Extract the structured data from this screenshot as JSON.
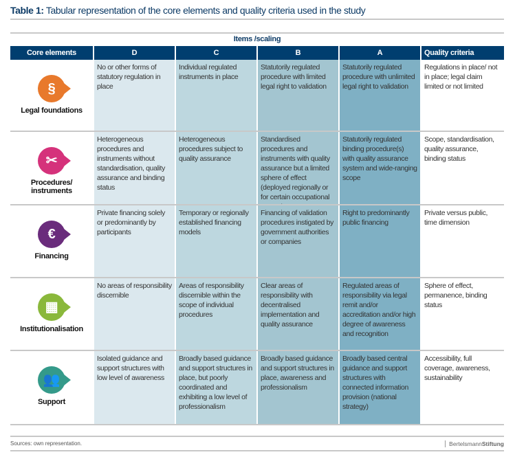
{
  "title": {
    "prefix": "Table 1:",
    "text": "Tabular representation of the core elements and quality criteria used in the study"
  },
  "items_scaling": "Items /scaling",
  "headers": [
    "Core elements",
    "D",
    "C",
    "B",
    "A",
    "Quality criteria"
  ],
  "colors": {
    "header": "#003e6f",
    "D": "#dbe8ee",
    "C": "#bdd7df",
    "B": "#a3c5d0",
    "A": "#7fb0c4"
  },
  "rows": [
    {
      "core": "Legal foundations",
      "icon": "paragraph-icon",
      "icon_color": "#e8792c",
      "glyph": "§",
      "D": "No or other forms of statutory regulation in place",
      "C": "Individual regulated instruments in place",
      "B": "Statutorily regulated procedure with limited legal right to validation",
      "A": "Statutorily regulated procedure with unlimited legal right to validation",
      "Q": "Regulations in place/ not in place; legal claim limited or not limited"
    },
    {
      "core": "Procedures/ instruments",
      "icon": "tools-icon",
      "icon_color": "#d5327b",
      "glyph": "✂",
      "D": "Heterogeneous procedures and instruments without standardisation, quality assurance and binding status",
      "C": "Heterogeneous procedures subject to quality assurance",
      "B": "Standardised procedures and instruments with quality assurance but a limited sphere of effect (deployed regionally or for certain occupational groups)",
      "A": "Statutorily regulated binding procedure(s) with quality assurance system and wide-ranging scope",
      "Q": "Scope, standardisation, quality assurance, binding status"
    },
    {
      "core": "Financing",
      "icon": "euro-icon",
      "icon_color": "#6a2c7c",
      "glyph": "€",
      "D": "Private financing solely or predominantly by participants",
      "C": "Temporary or regionally established financing models",
      "B": "Financing of validation procedures instigated by government authorities or companies",
      "A": "Right to predominantly public financing",
      "Q": "Private versus public, time dimension"
    },
    {
      "core": "Institutionalisation",
      "icon": "building-icon",
      "icon_color": "#8ab83b",
      "glyph": "▦",
      "D": "No areas of responsibility discernible",
      "C": "Areas of responsibility discernible within the scope of individual procedures",
      "B": "Clear areas of responsibility with decentralised implementation and quality assurance",
      "A": "Regulated areas of responsibility via legal remit and/or accreditation and/or high degree of awareness and recognition",
      "Q": "Sphere of effect, permanence, binding status"
    },
    {
      "core": "Support",
      "icon": "people-icon",
      "icon_color": "#349a8a",
      "glyph": "👥",
      "D": "Isolated guidance and support structures with low level of awareness",
      "C": "Broadly based guidance and support structures in place, but poorly coordinated and exhibiting a low level of professionalism",
      "B": "Broadly based guidance and support structures in place, awareness and professionalism",
      "A": "Broadly based central guidance and support structures with connected information provision (national strategy)",
      "Q": "Accessibility, full coverage, awareness, sustainability"
    }
  ],
  "footer": {
    "sources": "Sources: own representation.",
    "brand1": "Bertelsmann",
    "brand2": "Stiftung"
  }
}
